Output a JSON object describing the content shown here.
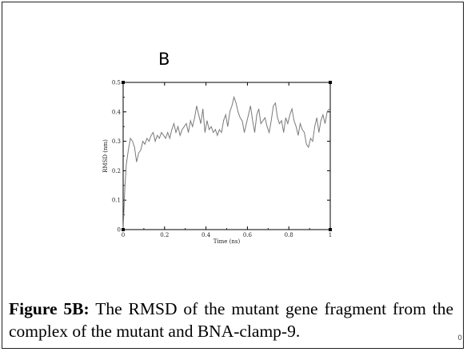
{
  "figure": {
    "panel_letter": "B",
    "caption_label": "Figure 5B:",
    "caption_text": " The RMSD of the mutant gene fragment from the complex of the mutant and BNA-clamp-9.",
    "corner_mark": "0"
  },
  "chart_data": {
    "type": "line",
    "title": "",
    "xlabel": "Time (ns)",
    "ylabel": "RMSD (nm)",
    "xlim": [
      0,
      1
    ],
    "ylim": [
      0,
      0.5
    ],
    "x_ticks": [
      0,
      0.2,
      0.4,
      0.6,
      0.8,
      1
    ],
    "x_tick_labels": [
      "0",
      "0.2",
      "0.4",
      "0.6",
      "0.8",
      "1"
    ],
    "y_ticks": [
      0,
      0.1,
      0.2,
      0.3,
      0.4,
      0.5
    ],
    "y_tick_labels": [
      "0",
      "0.1",
      "0.2",
      "0.3",
      "0.4",
      "0.5"
    ],
    "grid": false,
    "line_color": "#7a7a7a",
    "series": [
      {
        "x": [
          0,
          0.008,
          0.015,
          0.025,
          0.035,
          0.045,
          0.055,
          0.065,
          0.075,
          0.085,
          0.095,
          0.105,
          0.115,
          0.125,
          0.135,
          0.145,
          0.155,
          0.165,
          0.175,
          0.185,
          0.195,
          0.205,
          0.215,
          0.225,
          0.235,
          0.245,
          0.255,
          0.265,
          0.275,
          0.285,
          0.295,
          0.305,
          0.315,
          0.325,
          0.335,
          0.345,
          0.355,
          0.365,
          0.375,
          0.385,
          0.395,
          0.405,
          0.415,
          0.425,
          0.435,
          0.445,
          0.455,
          0.465,
          0.475,
          0.485,
          0.495,
          0.505,
          0.515,
          0.525,
          0.535,
          0.545,
          0.555,
          0.565,
          0.575,
          0.585,
          0.595,
          0.605,
          0.615,
          0.625,
          0.635,
          0.645,
          0.655,
          0.665,
          0.675,
          0.685,
          0.695,
          0.705,
          0.715,
          0.725,
          0.735,
          0.745,
          0.755,
          0.765,
          0.775,
          0.785,
          0.795,
          0.805,
          0.815,
          0.825,
          0.835,
          0.845,
          0.855,
          0.865,
          0.875,
          0.885,
          0.895,
          0.905,
          0.915,
          0.925,
          0.935,
          0.945,
          0.955,
          0.965,
          0.975,
          0.985,
          0.995
        ],
        "y": [
          0.0,
          0.14,
          0.22,
          0.27,
          0.31,
          0.3,
          0.28,
          0.23,
          0.26,
          0.27,
          0.3,
          0.29,
          0.31,
          0.3,
          0.32,
          0.33,
          0.3,
          0.32,
          0.31,
          0.33,
          0.32,
          0.31,
          0.33,
          0.31,
          0.34,
          0.36,
          0.33,
          0.35,
          0.32,
          0.34,
          0.35,
          0.36,
          0.33,
          0.37,
          0.35,
          0.38,
          0.42,
          0.39,
          0.36,
          0.41,
          0.33,
          0.37,
          0.34,
          0.35,
          0.33,
          0.34,
          0.32,
          0.34,
          0.33,
          0.37,
          0.39,
          0.35,
          0.4,
          0.42,
          0.45,
          0.43,
          0.4,
          0.38,
          0.37,
          0.33,
          0.36,
          0.39,
          0.42,
          0.37,
          0.33,
          0.39,
          0.41,
          0.36,
          0.37,
          0.38,
          0.35,
          0.33,
          0.37,
          0.42,
          0.43,
          0.38,
          0.36,
          0.37,
          0.33,
          0.38,
          0.36,
          0.39,
          0.41,
          0.37,
          0.35,
          0.32,
          0.36,
          0.34,
          0.33,
          0.29,
          0.28,
          0.31,
          0.3,
          0.35,
          0.38,
          0.33,
          0.37,
          0.39,
          0.36,
          0.4,
          0.41
        ]
      }
    ]
  }
}
